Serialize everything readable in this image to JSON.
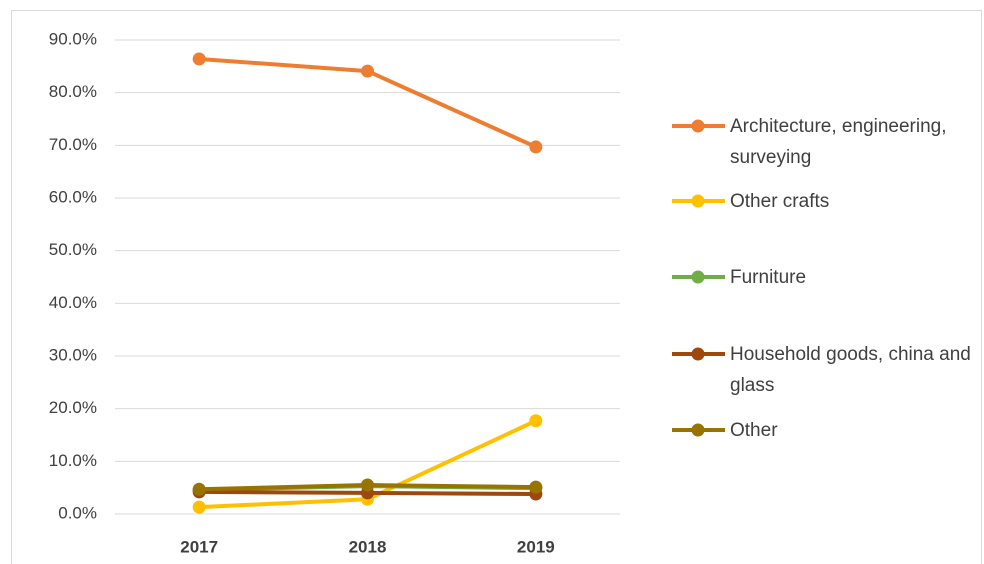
{
  "chart_data": {
    "type": "line",
    "categories": [
      "2017",
      "2018",
      "2019"
    ],
    "series": [
      {
        "name": "Architecture, engineering, surveying",
        "color": "#ED7D31",
        "values": [
          86.4,
          84.1,
          69.7
        ]
      },
      {
        "name": "Other crafts",
        "color": "#FFC000",
        "values": [
          1.3,
          2.8,
          17.7
        ]
      },
      {
        "name": "Furniture",
        "color": "#70AD47",
        "values": [
          4.6,
          5.3,
          4.9
        ]
      },
      {
        "name": "Household goods, china and glass",
        "color": "#9E480E",
        "values": [
          4.2,
          4.0,
          3.8
        ]
      },
      {
        "name": "Other",
        "color": "#997300",
        "values": [
          4.7,
          5.5,
          5.1
        ]
      }
    ],
    "ylim": [
      0,
      90
    ],
    "yticks": [
      {
        "value": 0,
        "label": "0.0%"
      },
      {
        "value": 10,
        "label": "10.0%"
      },
      {
        "value": 20,
        "label": "20.0%"
      },
      {
        "value": 30,
        "label": "30.0%"
      },
      {
        "value": 40,
        "label": "40.0%"
      },
      {
        "value": 50,
        "label": "50.0%"
      },
      {
        "value": 60,
        "label": "60.0%"
      },
      {
        "value": 70,
        "label": "70.0%"
      },
      {
        "value": 80,
        "label": "80.0%"
      },
      {
        "value": 90,
        "label": "90.0%"
      }
    ],
    "grid": true,
    "legend": "right"
  }
}
